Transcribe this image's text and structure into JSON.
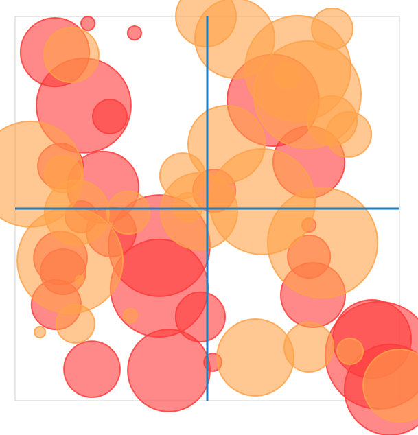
{
  "chart_data": {
    "type": "scatter",
    "title": "",
    "xlabel": "",
    "ylabel": "",
    "xlim": [
      -1,
      1
    ],
    "ylim": [
      -1,
      1
    ],
    "grid": false,
    "legend": "none",
    "axes_color": "#1f7fc0",
    "frame_color": "#d9d9d9",
    "series": [
      {
        "color": "#ff3b3b",
        "points": [
          {
            "x": -0.621,
            "y": 0.964,
            "r": 0.036
          },
          {
            "x": -0.379,
            "y": 0.914,
            "r": 0.036
          },
          {
            "x": -0.793,
            "y": 0.814,
            "r": 0.179
          },
          {
            "x": -0.643,
            "y": 0.536,
            "r": 0.246
          },
          {
            "x": -0.507,
            "y": 0.479,
            "r": 0.089
          },
          {
            "x": 0.343,
            "y": 0.564,
            "r": 0.239
          },
          {
            "x": 0.529,
            "y": 0.243,
            "r": 0.186
          },
          {
            "x": -0.764,
            "y": 0.221,
            "r": 0.118
          },
          {
            "x": -0.543,
            "y": 0.111,
            "r": 0.186
          },
          {
            "x": 0.036,
            "y": 0.093,
            "r": 0.111
          },
          {
            "x": -0.657,
            "y": -0.043,
            "r": 0.082
          },
          {
            "x": -0.5,
            "y": -0.121,
            "r": 0.129
          },
          {
            "x": -0.25,
            "y": -0.193,
            "r": 0.264
          },
          {
            "x": -0.25,
            "y": -0.414,
            "r": 0.254
          },
          {
            "x": -0.786,
            "y": -0.5,
            "r": 0.129
          },
          {
            "x": -0.75,
            "y": -0.329,
            "r": 0.118
          },
          {
            "x": -0.764,
            "y": -0.257,
            "r": 0.139
          },
          {
            "x": 0.529,
            "y": -0.086,
            "r": 0.036
          },
          {
            "x": 0.529,
            "y": -0.25,
            "r": 0.111
          },
          {
            "x": 0.55,
            "y": -0.45,
            "r": 0.168
          },
          {
            "x": -0.036,
            "y": -0.564,
            "r": 0.129
          },
          {
            "x": 0.857,
            "y": -0.679,
            "r": 0.204
          },
          {
            "x": 0.893,
            "y": -0.764,
            "r": 0.279
          },
          {
            "x": -0.6,
            "y": -0.836,
            "r": 0.146
          },
          {
            "x": -0.2,
            "y": -0.843,
            "r": 0.214
          },
          {
            "x": 0.029,
            "y": -0.8,
            "r": 0.046
          },
          {
            "x": 0.95,
            "y": -0.943,
            "r": 0.236
          }
        ]
      },
      {
        "color": "#ffa24a",
        "points": [
          {
            "x": -0.007,
            "y": 1.0,
            "r": 0.157
          },
          {
            "x": 0.143,
            "y": 0.886,
            "r": 0.207
          },
          {
            "x": 0.65,
            "y": 0.936,
            "r": 0.107
          },
          {
            "x": -0.707,
            "y": 0.8,
            "r": 0.143
          },
          {
            "x": 0.471,
            "y": 0.729,
            "r": 0.275
          },
          {
            "x": 0.414,
            "y": 0.693,
            "r": 0.068
          },
          {
            "x": 0.521,
            "y": 0.593,
            "r": 0.279
          },
          {
            "x": 0.65,
            "y": 0.457,
            "r": 0.129
          },
          {
            "x": 0.736,
            "y": 0.386,
            "r": 0.118
          },
          {
            "x": 0.1,
            "y": 0.336,
            "r": 0.2
          },
          {
            "x": -0.921,
            "y": 0.179,
            "r": 0.275
          },
          {
            "x": -0.75,
            "y": 0.179,
            "r": 0.096
          },
          {
            "x": -0.129,
            "y": 0.171,
            "r": 0.118
          },
          {
            "x": 0.286,
            "y": 0.036,
            "r": 0.275
          },
          {
            "x": -0.043,
            "y": -0.014,
            "r": 0.2
          },
          {
            "x": -0.1,
            "y": 0.007,
            "r": 0.075
          },
          {
            "x": -0.679,
            "y": -0.021,
            "r": 0.168
          },
          {
            "x": -0.411,
            "y": -0.021,
            "r": 0.111
          },
          {
            "x": 0.6,
            "y": -0.179,
            "r": 0.286
          },
          {
            "x": -0.714,
            "y": -0.271,
            "r": 0.275
          },
          {
            "x": -0.664,
            "y": -0.371,
            "r": 0.021
          },
          {
            "x": -0.4,
            "y": -0.557,
            "r": 0.036
          },
          {
            "x": -0.686,
            "y": -0.6,
            "r": 0.1
          },
          {
            "x": -0.871,
            "y": -0.643,
            "r": 0.029
          },
          {
            "x": 0.25,
            "y": -0.775,
            "r": 0.2
          },
          {
            "x": 0.529,
            "y": -0.721,
            "r": 0.129
          },
          {
            "x": 0.743,
            "y": -0.743,
            "r": 0.068
          },
          {
            "x": 1.0,
            "y": -0.921,
            "r": 0.189
          }
        ]
      }
    ]
  }
}
